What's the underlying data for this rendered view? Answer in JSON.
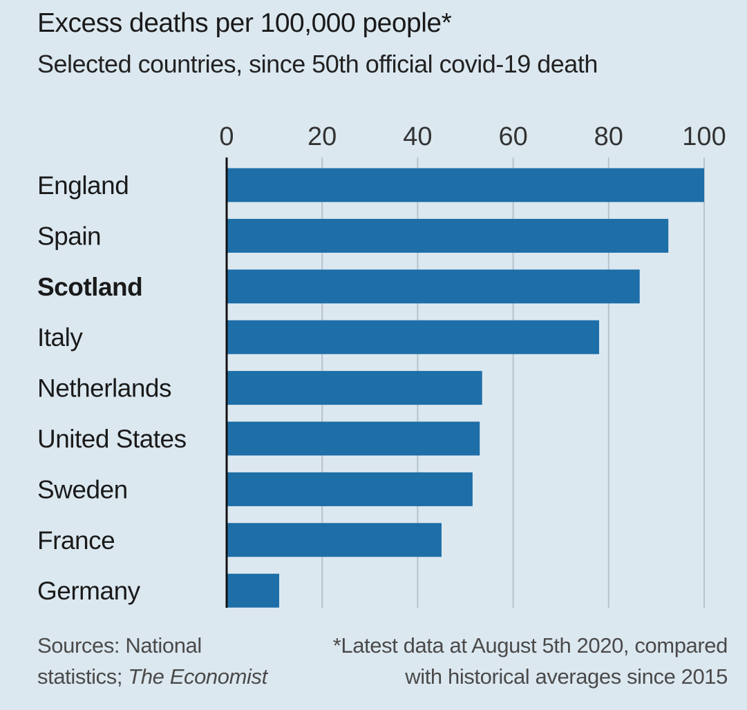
{
  "chart_data": {
    "type": "bar",
    "orientation": "horizontal",
    "title": "Excess deaths per 100,000 people*",
    "subtitle": "Selected countries, since 50th official covid-19 death",
    "categories": [
      "England",
      "Spain",
      "Scotland",
      "Italy",
      "Netherlands",
      "United States",
      "Sweden",
      "France",
      "Germany"
    ],
    "highlighted_category": "Scotland",
    "values": [
      100,
      92.5,
      86.5,
      78,
      53.5,
      53,
      51.5,
      45,
      11
    ],
    "xlim": [
      0,
      100
    ],
    "xticks": [
      0,
      20,
      40,
      60,
      80,
      100
    ],
    "axis_position": "top",
    "grid": true,
    "bar_color": "#1e6ea7",
    "background_color": "#dce8f0"
  },
  "footer": {
    "sources_line1": "Sources: National",
    "sources_line2_prefix": "statistics; ",
    "sources_line2_italic": "The Economist",
    "note_line1": "*Latest data at August 5th 2020, compared",
    "note_line2": "with historical averages since 2015"
  }
}
